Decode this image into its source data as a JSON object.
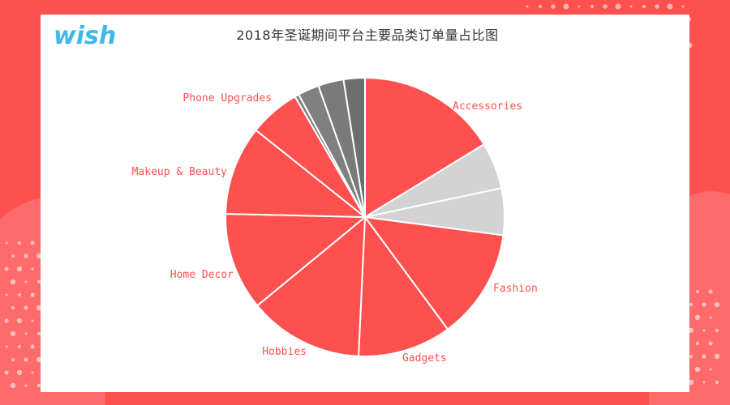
{
  "brand": {
    "logo_text": "wish",
    "logo_color": "#3fb8ea"
  },
  "colors": {
    "background": "#ff5050",
    "card": "#ffffff",
    "accent": "#ff5050",
    "light_gray": "#d3d3d3",
    "dark_gray": "#808080",
    "darker_gray": "#6e6e6e"
  },
  "chart_data": {
    "type": "pie",
    "title": "2018年圣诞期间平台主要品类订单量占比图",
    "slices": [
      {
        "label": "Accessories",
        "value": 16.5,
        "color": "#ff5050"
      },
      {
        "label": "",
        "value": 5.5,
        "color": "#d3d3d3"
      },
      {
        "label": "",
        "value": 5.5,
        "color": "#d3d3d3"
      },
      {
        "label": "Fashion",
        "value": 13.0,
        "color": "#ff5050"
      },
      {
        "label": "Gadgets",
        "value": 11.0,
        "color": "#ff5050"
      },
      {
        "label": "Hobbies",
        "value": 13.5,
        "color": "#ff5050"
      },
      {
        "label": "Home Decor",
        "value": 11.5,
        "color": "#ff5050"
      },
      {
        "label": "Makeup & Beauty",
        "value": 10.5,
        "color": "#ff5050"
      },
      {
        "label": "Phone Upgrades",
        "value": 6.0,
        "color": "#ff5050"
      },
      {
        "label": "",
        "value": 0.5,
        "color": "#808080"
      },
      {
        "label": "",
        "value": 2.5,
        "color": "#808080"
      },
      {
        "label": "",
        "value": 3.0,
        "color": "#7a7a7a"
      },
      {
        "label": "",
        "value": 2.5,
        "color": "#6e6e6e"
      }
    ]
  }
}
